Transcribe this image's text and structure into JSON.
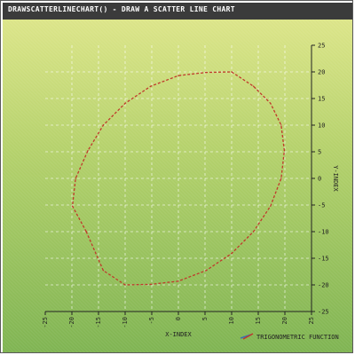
{
  "title": "DRAWSCATTERLINECHART() - DRAW A SCATTER LINE CHART",
  "colors": {
    "title_bar": "#3b3b3b",
    "bg_top": "#dce589",
    "bg_bottom": "#7fb452",
    "line": "#c0392b",
    "grid": "#ffffff"
  },
  "chart_data": {
    "type": "scatter",
    "xlabel": "X-INDEX",
    "ylabel": "Y-INDEX",
    "xlim": [
      -25,
      25
    ],
    "ylim": [
      -25,
      25
    ],
    "x_ticks": [
      -25,
      -20,
      -15,
      -10,
      -5,
      0,
      5,
      10,
      15,
      20,
      25
    ],
    "y_ticks": [
      -25,
      -20,
      -15,
      -10,
      -5,
      0,
      5,
      10,
      15,
      20,
      25
    ],
    "grid": true,
    "legend_position": "bottom-right",
    "series": [
      {
        "name": "TRIGONOMETRIC FUNCTION",
        "line_style": "dashed",
        "points": [
          [
            -17.3,
            -10.0
          ],
          [
            -19.9,
            -5.2
          ],
          [
            -19.3,
            0.0
          ],
          [
            -17.0,
            5.2
          ],
          [
            -14.1,
            10.0
          ],
          [
            -10.0,
            14.1
          ],
          [
            -5.2,
            17.3
          ],
          [
            0.0,
            19.3
          ],
          [
            5.2,
            19.9
          ],
          [
            10.0,
            20.0
          ],
          [
            14.1,
            17.3
          ],
          [
            17.3,
            14.1
          ],
          [
            19.3,
            10.0
          ],
          [
            19.9,
            5.2
          ],
          [
            19.3,
            0.0
          ],
          [
            17.3,
            -5.2
          ],
          [
            14.1,
            -10.0
          ],
          [
            10.0,
            -14.1
          ],
          [
            5.2,
            -17.3
          ],
          [
            0.0,
            -19.3
          ],
          [
            -5.2,
            -19.9
          ],
          [
            -10.0,
            -20.0
          ],
          [
            -14.1,
            -17.3
          ],
          [
            -17.3,
            -10.0
          ]
        ]
      }
    ]
  }
}
